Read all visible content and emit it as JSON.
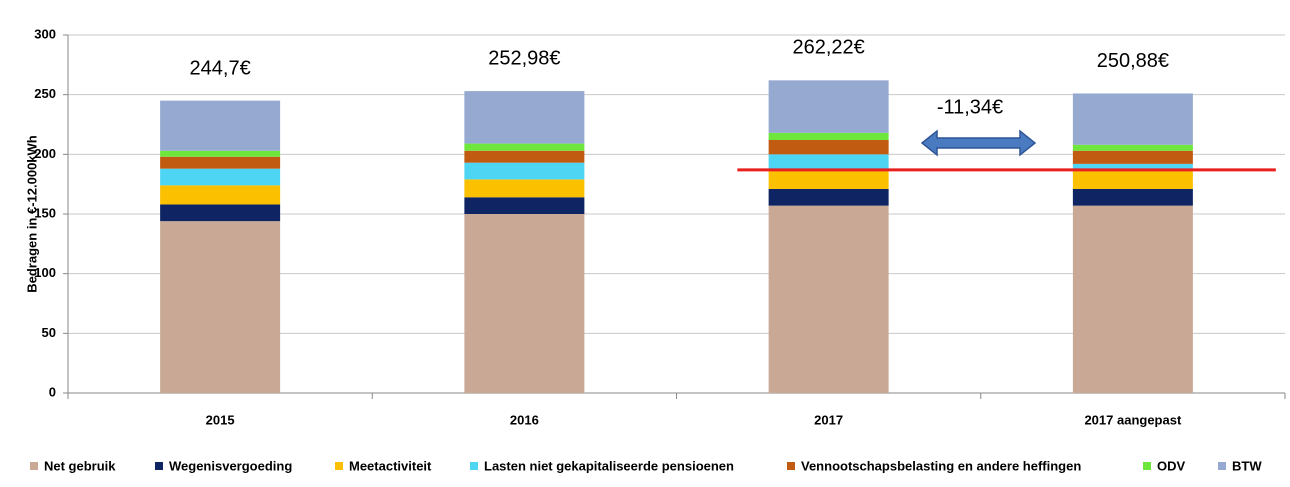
{
  "chart_data": {
    "type": "stacked_bar",
    "y_label": "Bedragen in €-12.000kWh",
    "categories": [
      "2015",
      "2016",
      "2017",
      "2017 aangepast"
    ],
    "series": [
      {
        "name": "Net gebruik",
        "color": "#c9a995",
        "values": [
          144,
          150,
          157,
          157
        ]
      },
      {
        "name": "Wegenisvergoeding",
        "color": "#0f2563",
        "values": [
          14,
          14,
          14,
          14
        ]
      },
      {
        "name": "Meetactiviteit",
        "color": "#fbc000",
        "values": [
          16,
          15,
          15,
          15
        ]
      },
      {
        "name": "Lasten niet gekapitaliseerde pensioenen",
        "color": "#4fd5f4",
        "values": [
          14,
          14,
          14,
          6
        ]
      },
      {
        "name": "Vennootschapsbelasting en andere heffingen",
        "color": "#c25b12",
        "values": [
          10,
          10,
          12,
          11
        ]
      },
      {
        "name": "ODV",
        "color": "#6fe63c",
        "values": [
          5,
          6,
          6,
          5
        ]
      },
      {
        "name": "BTW",
        "color": "#95a9d1",
        "values": [
          42,
          44,
          44,
          43
        ]
      }
    ],
    "totals": [
      244.7,
      252.98,
      262.22,
      250.88
    ],
    "total_labels": [
      "244,7€",
      "252,98€",
      "262,22€",
      "250,88€"
    ],
    "annotation": "-11,34€",
    "reference_line": {
      "value": 187,
      "color": "#e8211f"
    },
    "ylim": [
      0,
      300
    ],
    "yticks": [
      0,
      50,
      100,
      150,
      200,
      250,
      300
    ],
    "grid": true
  }
}
